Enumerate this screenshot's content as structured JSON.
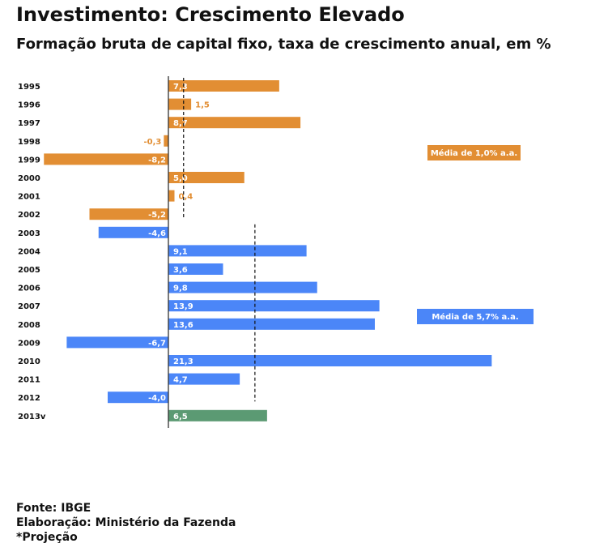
{
  "title": "Investimento: Crescimento Elevado",
  "subtitle": "Formação bruta de capital fixo, taxa de crescimento anual, em %",
  "footer": {
    "source": "Fonte: IBGE",
    "elaboration": "Elaboração: Ministério da Fazenda",
    "note": "*Projeção"
  },
  "colors": {
    "period1": "#E28E33",
    "period2": "#4B86F8",
    "projection": "#5B9A73"
  },
  "chart_data": {
    "type": "bar",
    "orientation": "horizontal",
    "categories": [
      "1995",
      "1996",
      "1997",
      "1998",
      "1999",
      "2000",
      "2001",
      "2002",
      "2003",
      "2004",
      "2005",
      "2006",
      "2007",
      "2008",
      "2009",
      "2010",
      "2011",
      "2012",
      "2013v"
    ],
    "values": [
      7.3,
      1.5,
      8.7,
      -0.3,
      -8.2,
      5.0,
      0.4,
      -5.2,
      -4.6,
      9.1,
      3.6,
      9.8,
      13.9,
      13.6,
      -6.7,
      21.3,
      4.7,
      -4.0,
      6.5
    ],
    "value_labels": [
      "7,3",
      "1,5",
      "8,7",
      "-0,3",
      "-8,2",
      "5,0",
      "0,4",
      "-5,2",
      "-4,6",
      "9,1",
      "3,6",
      "9,8",
      "13,9",
      "13,6",
      "-6,7",
      "21,3",
      "4,7",
      "-4,0",
      "6,5"
    ],
    "groups": [
      "period1",
      "period1",
      "period1",
      "period1",
      "period1",
      "period1",
      "period1",
      "period1",
      "period2",
      "period2",
      "period2",
      "period2",
      "period2",
      "period2",
      "period2",
      "period2",
      "period2",
      "period2",
      "projection"
    ],
    "xlim": [
      -8.2,
      21.3
    ],
    "averages": [
      {
        "value": 1.0,
        "label": "Média de 1,0% a.a.",
        "from": "1995",
        "to": "2002",
        "group": "period1"
      },
      {
        "value": 5.7,
        "label": "Média de 5,7% a.a.",
        "from": "2003",
        "to": "2012",
        "group": "period2"
      }
    ]
  }
}
